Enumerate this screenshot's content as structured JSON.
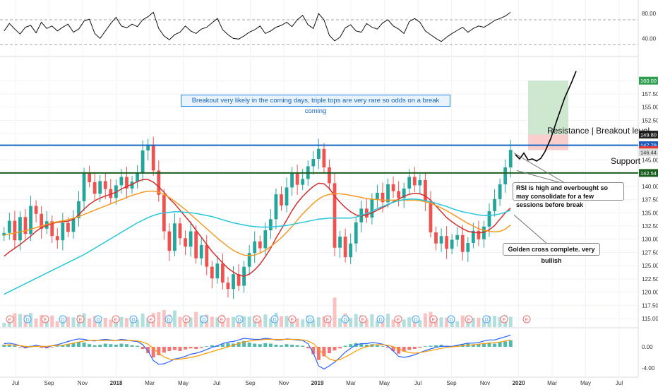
{
  "chart_data": [
    {
      "panel": "rsi",
      "type": "line",
      "y_ticks": [
        "80.00",
        "40.00"
      ],
      "ylim": [
        20,
        95
      ],
      "bands": [
        70,
        30
      ],
      "series": [
        {
          "values": [
            52,
            64,
            55,
            47,
            58,
            61,
            49,
            66,
            56,
            60,
            52,
            58,
            63,
            50,
            55,
            68,
            71,
            48,
            40,
            52,
            64,
            74,
            60,
            57,
            63,
            59,
            70,
            75,
            82,
            56,
            44,
            38,
            46,
            50,
            60,
            52,
            48,
            55,
            58,
            65,
            72,
            54,
            46,
            40,
            39,
            44,
            50,
            54,
            60,
            48,
            52,
            58,
            61,
            66,
            59,
            70,
            77,
            62,
            56,
            80,
            70,
            45,
            36,
            42,
            57,
            62,
            52,
            50,
            64,
            58,
            55,
            65,
            70,
            60,
            55,
            48,
            67,
            72,
            66,
            52,
            46,
            40,
            35,
            42,
            48,
            53,
            58,
            50,
            56,
            60,
            58,
            63,
            69,
            72,
            76,
            82
          ]
        }
      ]
    },
    {
      "panel": "price",
      "type": "line",
      "title": "",
      "y_ticks": [
        "160.00",
        "157.50",
        "155.00",
        "152.50",
        "150.00",
        "147.50",
        "145.00",
        "142.50",
        "140.00",
        "137.50",
        "135.00",
        "132.50",
        "130.00",
        "127.50",
        "125.00",
        "122.50",
        "120.00",
        "117.50",
        "115.00"
      ],
      "ylim": [
        113.8,
        163.5
      ],
      "x_ticks": [
        "Jul",
        "Sep",
        "Nov",
        "2018",
        "Mar",
        "May",
        "Jul",
        "Sep",
        "Nov",
        "2019",
        "Mar",
        "May",
        "Jul",
        "Sep",
        "Nov",
        "2020",
        "Mar",
        "May",
        "Jul"
      ],
      "price_labels": [
        {
          "value": 160.0,
          "text": "160.00",
          "color": "#2e9e4f"
        },
        {
          "value": 149.8,
          "text": "149.80",
          "color": "#222222"
        },
        {
          "value": 147.79,
          "text": "147.79",
          "color": "#1e5bb8"
        },
        {
          "value": 146.86,
          "text": "146.86",
          "color": "#e53935"
        },
        {
          "value": 146.44,
          "text": "146.44",
          "color": "#dddddd"
        },
        {
          "value": 142.54,
          "text": "142.54",
          "color": "#1b5e20"
        }
      ],
      "levels": [
        {
          "name": "Resistance | Breakout level",
          "value": 147.79,
          "color": "#1565c0"
        },
        {
          "name": "Support",
          "value": 142.54,
          "color": "#1b5e20"
        }
      ],
      "close": [
        131.2,
        133.5,
        129.8,
        134.2,
        131.0,
        136.3,
        134.8,
        132.0,
        133.4,
        130.6,
        129.8,
        133.1,
        131.4,
        134.0,
        137.2,
        142.4,
        140.8,
        138.6,
        141.0,
        139.5,
        137.8,
        140.2,
        141.8,
        139.6,
        140.9,
        142.5,
        146.8,
        147.9,
        143.0,
        138.4,
        131.5,
        127.8,
        133.0,
        130.2,
        128.6,
        131.5,
        126.4,
        128.9,
        124.8,
        122.6,
        125.4,
        121.8,
        120.6,
        123.4,
        121.2,
        124.8,
        127.4,
        129.6,
        128.3,
        131.7,
        133.8,
        138.5,
        136.4,
        139.8,
        142.6,
        140.3,
        141.4,
        143.8,
        145.2,
        147.1,
        143.6,
        140.6,
        128.4,
        130.5,
        126.6,
        129.2,
        133.2,
        135.8,
        134.1,
        137.6,
        138.8,
        137.0,
        140.4,
        139.1,
        137.8,
        139.6,
        141.8,
        140.2,
        141.2,
        137.2,
        131.3,
        129.2,
        130.6,
        128.2,
        129.9,
        130.8,
        127.6,
        129.3,
        131.6,
        130.0,
        132.4,
        135.3,
        137.6,
        140.4,
        143.6,
        146.9
      ],
      "series": [
        {
          "name": "",
          "color": "#d32f2f",
          "values": [
            126.8,
            127.6,
            128.3,
            129.0,
            129.8,
            130.6,
            131.5,
            132.2,
            132.6,
            133.0,
            133.2,
            133.3,
            133.4,
            133.8,
            134.6,
            135.7,
            136.6,
            137.3,
            137.8,
            138.2,
            138.5,
            138.9,
            139.5,
            140.0,
            140.4,
            140.9,
            141.3,
            141.3,
            140.8,
            139.9,
            138.9,
            137.7,
            136.7,
            135.5,
            134.3,
            133.1,
            131.7,
            130.4,
            129.0,
            127.7,
            126.6,
            125.5,
            124.5,
            123.8,
            123.2,
            123.0,
            123.4,
            124.2,
            125.3,
            126.7,
            128.3,
            130.2,
            131.9,
            133.6,
            135.4,
            136.9,
            138.1,
            139.1,
            140.0,
            140.6,
            140.5,
            139.6,
            138.2,
            137.0,
            136.0,
            135.2,
            134.6,
            134.4,
            134.6,
            135.0,
            135.5,
            136.0,
            136.5,
            137.1,
            137.6,
            138.1,
            138.5,
            138.7,
            138.6,
            138.2,
            137.4,
            136.3,
            135.2,
            134.1,
            133.3,
            132.6,
            132.0,
            131.5,
            131.3,
            131.2,
            131.3,
            131.8,
            132.6,
            133.8,
            135.0,
            135.9
          ]
        },
        {
          "name": "",
          "color": "#f59a23",
          "values": [
            130.8,
            131.0,
            131.2,
            131.4,
            131.6,
            131.9,
            132.2,
            132.5,
            132.8,
            133.1,
            133.3,
            133.5,
            133.7,
            134.0,
            134.3,
            134.7,
            135.1,
            135.5,
            135.9,
            136.3,
            136.7,
            137.1,
            137.5,
            137.9,
            138.3,
            138.6,
            138.9,
            139.1,
            139.1,
            138.9,
            138.5,
            137.9,
            137.2,
            136.4,
            135.6,
            134.7,
            133.8,
            132.9,
            132.0,
            131.1,
            130.2,
            129.4,
            128.6,
            127.9,
            127.4,
            127.0,
            126.9,
            127.0,
            127.4,
            127.9,
            128.6,
            129.4,
            130.3,
            131.3,
            132.4,
            133.6,
            134.8,
            135.8,
            136.8,
            137.6,
            138.2,
            138.5,
            138.6,
            138.6,
            138.5,
            138.3,
            138.1,
            137.9,
            137.7,
            137.6,
            137.5,
            137.4,
            137.4,
            137.4,
            137.4,
            137.4,
            137.4,
            137.4,
            137.3,
            137.1,
            136.8,
            136.4,
            135.9,
            135.4,
            134.8,
            134.2,
            133.6,
            133.0,
            132.5,
            132.0,
            131.7,
            131.5,
            131.4,
            131.5,
            131.9,
            132.7
          ]
        },
        {
          "name": "",
          "color": "#26c6da",
          "values": [
            119.6,
            120.1,
            120.6,
            121.1,
            121.6,
            122.1,
            122.6,
            123.1,
            123.6,
            124.1,
            124.6,
            125.1,
            125.6,
            126.1,
            126.6,
            127.1,
            127.7,
            128.3,
            128.9,
            129.5,
            130.1,
            130.7,
            131.3,
            131.9,
            132.5,
            133.1,
            133.6,
            134.1,
            134.5,
            134.8,
            135.0,
            135.1,
            135.2,
            135.2,
            135.1,
            135.0,
            134.9,
            134.7,
            134.5,
            134.3,
            134.0,
            133.7,
            133.4,
            133.1,
            132.9,
            132.7,
            132.5,
            132.4,
            132.3,
            132.3,
            132.3,
            132.4,
            132.5,
            132.6,
            132.8,
            133.0,
            133.2,
            133.4,
            133.6,
            133.8,
            133.9,
            134.0,
            134.0,
            134.0,
            134.0,
            134.0,
            134.2,
            134.5,
            134.9,
            135.3,
            135.8,
            136.2,
            136.6,
            137.0,
            137.3,
            137.5,
            137.6,
            137.6,
            137.5,
            137.3,
            137.1,
            136.8,
            136.5,
            136.2,
            135.8,
            135.5,
            135.2,
            135.0,
            134.8,
            134.6,
            134.5,
            134.5,
            134.6,
            134.8,
            135.1,
            135.5
          ]
        }
      ],
      "events": [
        "E",
        "D",
        "E",
        "D",
        "E",
        "D",
        "E",
        "D",
        "E",
        "D",
        "E",
        "D",
        "E",
        "D",
        "E",
        "D",
        "E",
        "D",
        "E",
        "D",
        "E",
        "D",
        "E",
        "D",
        "E",
        "D",
        "E",
        "D",
        "E"
      ],
      "projection": {
        "target": 160.0,
        "entry": 149.8,
        "stop": 146.86
      }
    },
    {
      "panel": "macd",
      "type": "bar",
      "y_ticks": [
        "0.00",
        "-4.00"
      ],
      "ylim": [
        -5.2,
        2.8
      ],
      "histogram": [
        0.4,
        0.3,
        0.2,
        -0.1,
        -0.3,
        0.2,
        0.1,
        -0.2,
        -0.3,
        -0.1,
        0.1,
        0.3,
        0.5,
        0.7,
        0.9,
        0.8,
        0.5,
        0.3,
        0.4,
        0.6,
        0.5,
        0.4,
        0.6,
        0.5,
        0.3,
        0.2,
        -0.4,
        -1.2,
        -2.0,
        -1.6,
        -1.1,
        -0.8,
        -0.6,
        -0.8,
        -0.5,
        -0.3,
        -0.4,
        -0.2,
        0.1,
        0.3,
        0.2,
        0.5,
        0.7,
        0.6,
        0.9,
        1.1,
        0.8,
        0.6,
        0.5,
        0.7,
        0.6,
        0.4,
        0.3,
        0.5,
        0.4,
        0.3,
        0.2,
        -0.3,
        -1.4,
        -2.5,
        -1.8,
        -1.2,
        -0.7,
        -0.3,
        0.2,
        0.5,
        0.7,
        0.6,
        0.4,
        0.5,
        0.3,
        0.1,
        -0.2,
        -0.8,
        -1.3,
        -0.9,
        -0.6,
        -0.4,
        -0.2,
        0.1,
        0.2,
        0.3,
        0.4,
        0.2,
        0.1,
        0.3,
        0.5,
        0.6,
        0.4,
        0.5,
        0.7,
        0.8,
        0.6,
        0.9,
        1.0,
        1.2
      ],
      "series": [
        {
          "name": "",
          "color": "#2962ff",
          "values": [
            0.6,
            0.7,
            0.5,
            0.2,
            -0.1,
            0.0,
            0.3,
            0.1,
            -0.1,
            0.2,
            0.4,
            0.7,
            1.0,
            1.3,
            1.5,
            1.4,
            1.2,
            1.1,
            1.3,
            1.4,
            1.3,
            1.2,
            1.4,
            1.3,
            1.1,
            1.0,
            0.4,
            -0.8,
            -2.6,
            -3.3,
            -3.2,
            -2.8,
            -2.3,
            -2.1,
            -1.8,
            -1.4,
            -1.2,
            -0.9,
            -0.5,
            -0.1,
            0.2,
            0.6,
            0.9,
            1.0,
            1.3,
            1.6,
            1.5,
            1.4,
            1.4,
            1.6,
            1.5,
            1.3,
            1.3,
            1.5,
            1.4,
            1.3,
            1.2,
            0.6,
            -1.2,
            -3.6,
            -4.2,
            -3.6,
            -2.9,
            -2.0,
            -1.0,
            -0.3,
            0.4,
            0.6,
            0.6,
            0.8,
            0.7,
            0.5,
            0.1,
            -0.8,
            -1.8,
            -2.0,
            -1.8,
            -1.5,
            -1.1,
            -0.7,
            -0.4,
            -0.1,
            0.1,
            0.1,
            0.1,
            0.3,
            0.5,
            0.7,
            0.7,
            0.8,
            1.1,
            1.3,
            1.3,
            1.6,
            1.9,
            2.2
          ]
        },
        {
          "name": "",
          "color": "#ff9800",
          "values": [
            0.3,
            0.4,
            0.3,
            0.2,
            0.1,
            0.0,
            0.1,
            0.1,
            0.1,
            0.2,
            0.2,
            0.3,
            0.5,
            0.7,
            0.9,
            1.1,
            1.2,
            1.2,
            1.2,
            1.2,
            1.2,
            1.2,
            1.2,
            1.2,
            1.2,
            1.1,
            0.9,
            0.5,
            -0.3,
            -1.2,
            -1.9,
            -2.3,
            -2.4,
            -2.3,
            -2.2,
            -2.0,
            -1.8,
            -1.5,
            -1.2,
            -0.9,
            -0.6,
            -0.3,
            0.0,
            0.3,
            0.6,
            0.9,
            1.1,
            1.2,
            1.3,
            1.4,
            1.4,
            1.4,
            1.4,
            1.4,
            1.4,
            1.4,
            1.3,
            1.1,
            0.6,
            -0.4,
            -1.5,
            -2.3,
            -2.6,
            -2.4,
            -1.9,
            -1.4,
            -0.8,
            -0.3,
            0.0,
            0.3,
            0.4,
            0.4,
            0.3,
            0.0,
            -0.4,
            -0.8,
            -1.1,
            -1.2,
            -1.1,
            -0.9,
            -0.7,
            -0.5,
            -0.3,
            -0.1,
            0.0,
            0.1,
            0.2,
            0.3,
            0.4,
            0.5,
            0.6,
            0.7,
            0.8,
            0.9,
            1.1,
            1.3
          ]
        }
      ]
    }
  ],
  "annotations": {
    "breakout": "Breakout very likely in the coming days, triple tops are very rare so odds on a break coming",
    "rsi": "RSI is high and overbought so may consolidate for a few sessions before break",
    "golden": "Golden cross complete. very bullish",
    "resistance": "Resistance | Breakout level",
    "support": "Support"
  },
  "colors": {
    "up": "#26a69a",
    "down": "#ef5350",
    "grid": "#f0f3fa",
    "axis_text": "#333333",
    "target_zone": "#c8e6c9",
    "stop_zone": "#f8c9c6",
    "event_circle": "#e57373",
    "dividend_circle": "#42a5f5"
  }
}
